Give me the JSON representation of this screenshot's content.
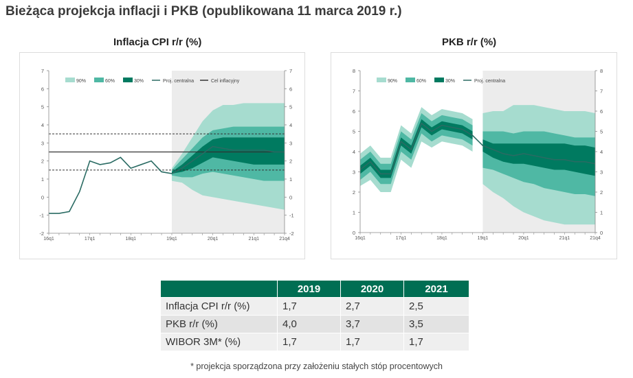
{
  "page": {
    "title": "Bieżąca projekcja inflacji i PKB (opublikowana 11 marca 2019 r.)",
    "footnote": "* projekcja sporządzona przy założeniu stałych stóp procentowych"
  },
  "colors": {
    "band90": "#a6dccf",
    "band60": "#4fb8a4",
    "band30": "#007a60",
    "line": "#2a6b63",
    "target": "#333333",
    "forecast_bg": "#ececec",
    "header": "#006e53"
  },
  "chart_data": [
    {
      "id": "cpi",
      "type": "area",
      "title": "Inflacja CPI r/r (%)",
      "ylim": [
        -2,
        7
      ],
      "yticks": [
        "-2",
        "-1",
        "0",
        "1",
        "2",
        "3",
        "4",
        "5",
        "6",
        "7"
      ],
      "x_tick_labels": [
        "16q1",
        "17q1",
        "18q1",
        "19q1",
        "20q1",
        "21q1",
        "21q4"
      ],
      "x_tick_index": [
        0,
        4,
        8,
        12,
        16,
        20,
        23
      ],
      "n_periods": 24,
      "forecast_start": 12,
      "legend": [
        "90%",
        "60%",
        "30%",
        "Proj. centralna",
        "Cel inflacyjny"
      ],
      "legend_position": "top",
      "central": [
        -0.9,
        -0.9,
        -0.8,
        0.3,
        2.0,
        1.8,
        1.9,
        2.2,
        1.6,
        1.8,
        2.0,
        1.4,
        1.3,
        1.6,
        2.0,
        2.4,
        2.8,
        2.7,
        2.6,
        2.6,
        2.6,
        2.6,
        2.5,
        2.5
      ],
      "band30": {
        "lower": [
          1.3,
          1.4,
          1.6,
          1.9,
          2.2,
          2.1,
          2.0,
          1.9,
          1.8,
          1.8,
          1.8,
          1.8
        ],
        "upper": [
          1.4,
          1.8,
          2.3,
          2.8,
          3.2,
          3.3,
          3.3,
          3.3,
          3.3,
          3.3,
          3.3,
          3.3
        ]
      },
      "band60": {
        "lower": [
          1.2,
          1.1,
          1.1,
          1.3,
          1.4,
          1.3,
          1.2,
          1.1,
          1.0,
          0.9,
          0.9,
          0.9
        ],
        "upper": [
          1.5,
          2.1,
          2.7,
          3.3,
          3.7,
          3.8,
          3.9,
          3.9,
          3.9,
          3.9,
          3.9,
          3.9
        ]
      },
      "band90": {
        "lower": [
          0.9,
          0.8,
          0.4,
          0.1,
          0.0,
          -0.1,
          -0.2,
          -0.3,
          -0.4,
          -0.5,
          -0.6,
          -0.7
        ],
        "upper": [
          1.6,
          2.4,
          3.3,
          4.2,
          4.8,
          5.1,
          5.1,
          5.2,
          5.2,
          5.2,
          5.2,
          5.2
        ]
      },
      "target": 2.5,
      "tolerance": [
        1.5,
        3.5
      ]
    },
    {
      "id": "gdp",
      "type": "area",
      "title": "PKB r/r (%)",
      "ylim": [
        0,
        8
      ],
      "yticks": [
        "0",
        "1",
        "2",
        "3",
        "4",
        "5",
        "6",
        "7",
        "8"
      ],
      "x_tick_labels": [
        "16q1",
        "17q1",
        "18q1",
        "19q1",
        "20q1",
        "21q1",
        "21q4"
      ],
      "x_tick_index": [
        0,
        4,
        8,
        12,
        16,
        20,
        23
      ],
      "n_periods": 24,
      "forecast_start": 12,
      "legend": [
        "90%",
        "60%",
        "30%",
        "Proj. centralna"
      ],
      "legend_position": "top",
      "history": {
        "central": [
          3.1,
          3.5,
          2.9,
          2.9,
          4.5,
          4.1,
          5.4,
          5.0,
          5.3,
          5.2,
          5.1,
          4.8
        ],
        "b30": [
          [
            2.9,
            3.3
          ],
          [
            3.3,
            3.7
          ],
          [
            2.7,
            3.1
          ],
          [
            2.7,
            3.1
          ],
          [
            4.3,
            4.7
          ],
          [
            3.9,
            4.3
          ],
          [
            5.2,
            5.6
          ],
          [
            4.8,
            5.2
          ],
          [
            5.1,
            5.5
          ],
          [
            5.0,
            5.4
          ],
          [
            4.9,
            5.3
          ],
          [
            4.6,
            5.0
          ]
        ],
        "b60": [
          [
            2.6,
            3.6
          ],
          [
            3.0,
            4.0
          ],
          [
            2.4,
            3.4
          ],
          [
            2.4,
            3.4
          ],
          [
            4.0,
            5.0
          ],
          [
            3.6,
            4.6
          ],
          [
            4.9,
            5.9
          ],
          [
            4.5,
            5.5
          ],
          [
            4.8,
            5.8
          ],
          [
            4.7,
            5.7
          ],
          [
            4.6,
            5.6
          ],
          [
            4.3,
            5.3
          ]
        ],
        "b90": [
          [
            2.3,
            3.9
          ],
          [
            2.6,
            4.3
          ],
          [
            2.0,
            3.7
          ],
          [
            2.0,
            3.7
          ],
          [
            3.6,
            5.3
          ],
          [
            3.2,
            4.9
          ],
          [
            4.5,
            6.2
          ],
          [
            4.2,
            5.8
          ],
          [
            4.5,
            6.1
          ],
          [
            4.4,
            6.0
          ],
          [
            4.3,
            5.9
          ],
          [
            4.0,
            5.6
          ]
        ]
      },
      "central": [
        4.3,
        4.1,
        3.9,
        3.8,
        3.9,
        3.8,
        3.7,
        3.6,
        3.6,
        3.5,
        3.5,
        3.4
      ],
      "band30": {
        "lower": [
          4.0,
          3.7,
          3.5,
          3.4,
          3.4,
          3.3,
          3.2,
          3.1,
          3.1,
          3.0,
          2.9,
          2.8
        ],
        "upper": [
          4.6,
          4.4,
          4.4,
          4.4,
          4.4,
          4.4,
          4.4,
          4.4,
          4.4,
          4.3,
          4.3,
          4.2
        ]
      },
      "band60": {
        "lower": [
          3.2,
          3.1,
          2.9,
          2.7,
          2.5,
          2.4,
          2.2,
          2.1,
          2.0,
          1.9,
          1.9,
          1.8
        ],
        "upper": [
          5.0,
          5.0,
          5.0,
          4.9,
          5.0,
          5.0,
          5.0,
          4.9,
          4.8,
          4.7,
          4.7,
          4.7
        ]
      },
      "band90": {
        "lower": [
          2.4,
          2.0,
          1.7,
          1.3,
          1.0,
          0.8,
          0.6,
          0.5,
          0.4,
          0.4,
          0.4,
          0.4
        ],
        "upper": [
          5.9,
          6.0,
          6.0,
          6.3,
          6.3,
          6.3,
          6.2,
          6.1,
          6.0,
          6.0,
          6.0,
          5.9
        ]
      }
    }
  ],
  "table": {
    "headers": [
      "",
      "2019",
      "2020",
      "2021"
    ],
    "rows": [
      {
        "label": "Inflacja CPI r/r (%)",
        "values": [
          "1,7",
          "2,7",
          "2,5"
        ]
      },
      {
        "label": "PKB r/r (%)",
        "values": [
          "4,0",
          "3,7",
          "3,5"
        ]
      },
      {
        "label": "WIBOR 3M* (%)",
        "values": [
          "1,7",
          "1,7",
          "1,7"
        ]
      }
    ]
  }
}
